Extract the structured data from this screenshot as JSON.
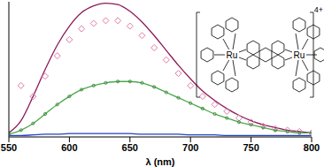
{
  "chart_data": {
    "type": "line",
    "x_label": "λ (nm)",
    "x": [
      550,
      560,
      570,
      580,
      590,
      600,
      610,
      620,
      630,
      640,
      650,
      660,
      670,
      680,
      690,
      700,
      710,
      720,
      730,
      740,
      750,
      760,
      770,
      780,
      790,
      800
    ],
    "xlim": [
      550,
      800
    ],
    "xticks": [
      550,
      600,
      650,
      700,
      750,
      800
    ],
    "ylim": [
      0,
      1
    ],
    "yticks": [
      0,
      0.2,
      0.4,
      0.6,
      0.8,
      1
    ],
    "tick_labels": "x",
    "grid": false,
    "annotations": [
      "4+",
      "Ru",
      "Ru"
    ],
    "series": [
      {
        "color": "#8b1a5a",
        "marker": "none",
        "line_style": "solid",
        "values": [
          0.03,
          0.12,
          0.3,
          0.5,
          0.68,
          0.82,
          0.92,
          0.97,
          0.99,
          0.98,
          0.93,
          0.85,
          0.75,
          0.64,
          0.53,
          0.43,
          0.34,
          0.27,
          0.21,
          0.16,
          0.12,
          0.09,
          0.07,
          0.05,
          0.04,
          0.03
        ]
      },
      {
        "color": "#e07aa8",
        "marker": "diamond",
        "line_style": "none",
        "values": [
          null,
          0.38,
          0.3,
          0.45,
          0.6,
          0.72,
          0.8,
          0.84,
          0.86,
          0.86,
          0.82,
          0.75,
          0.66,
          0.57,
          0.47,
          0.38,
          0.3,
          0.24,
          0.19,
          0.14,
          0.11,
          0.08,
          0.06,
          0.05,
          0.04,
          0.03
        ]
      },
      {
        "color": "#4aa84a",
        "marker": "circle",
        "line_style": "solid",
        "values": [
          0.02,
          0.05,
          0.1,
          0.17,
          0.24,
          0.3,
          0.35,
          0.38,
          0.4,
          0.41,
          0.41,
          0.4,
          0.37,
          0.33,
          0.29,
          0.25,
          0.21,
          0.17,
          0.14,
          0.11,
          0.09,
          0.07,
          0.05,
          0.04,
          0.03,
          0.03
        ]
      },
      {
        "color": "#2040c0",
        "marker": "none",
        "line_style": "solid",
        "values": [
          0.01,
          0.01,
          0.015,
          0.02,
          0.02,
          0.025,
          0.025,
          0.025,
          0.025,
          0.025,
          0.025,
          0.02,
          0.02,
          0.02,
          0.02,
          0.015,
          0.015,
          0.015,
          0.01,
          0.01,
          0.01,
          0.01,
          0.01,
          0.01,
          0.01,
          0.01
        ]
      }
    ]
  }
}
